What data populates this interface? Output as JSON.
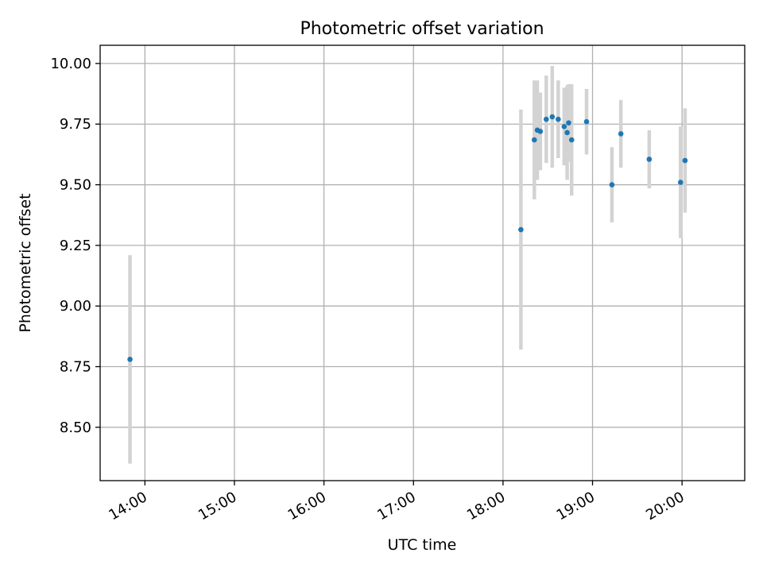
{
  "chart_data": {
    "type": "scatter",
    "title": "Photometric offset variation",
    "xlabel": "UTC time",
    "ylabel": "Photometric offset",
    "xlim": [
      "13:30",
      "20:42"
    ],
    "ylim": [
      8.28,
      10.075
    ],
    "x_ticks": [
      "14:00",
      "15:00",
      "16:00",
      "17:00",
      "18:00",
      "19:00",
      "20:00"
    ],
    "y_ticks": [
      "8.50",
      "8.75",
      "9.00",
      "9.25",
      "9.50",
      "9.75",
      "10.00"
    ],
    "grid": true,
    "colors": {
      "point": "#1f77b4",
      "errorbar": "#d3d3d3",
      "grid": "#b0b0b0"
    },
    "points": [
      {
        "x": "13:50",
        "y": 8.78,
        "err": 0.43
      },
      {
        "x": "18:12",
        "y": 9.315,
        "err": 0.495
      },
      {
        "x": "18:21",
        "y": 9.685,
        "err": 0.245
      },
      {
        "x": "18:23",
        "y": 9.725,
        "err": 0.205
      },
      {
        "x": "18:25",
        "y": 9.72,
        "err": 0.16
      },
      {
        "x": "18:29",
        "y": 9.77,
        "err": 0.18
      },
      {
        "x": "18:33",
        "y": 9.78,
        "err": 0.21
      },
      {
        "x": "18:37",
        "y": 9.77,
        "err": 0.16
      },
      {
        "x": "18:41",
        "y": 9.74,
        "err": 0.16
      },
      {
        "x": "18:43",
        "y": 9.715,
        "err": 0.195
      },
      {
        "x": "18:44",
        "y": 9.755,
        "err": 0.16
      },
      {
        "x": "18:46",
        "y": 9.685,
        "err": 0.23
      },
      {
        "x": "18:56",
        "y": 9.76,
        "err": 0.135
      },
      {
        "x": "19:13",
        "y": 9.5,
        "err": 0.155
      },
      {
        "x": "19:19",
        "y": 9.71,
        "err": 0.14
      },
      {
        "x": "19:38",
        "y": 9.605,
        "err": 0.12
      },
      {
        "x": "19:59",
        "y": 9.51,
        "err": 0.23
      },
      {
        "x": "20:02",
        "y": 9.6,
        "err": 0.215
      }
    ]
  }
}
